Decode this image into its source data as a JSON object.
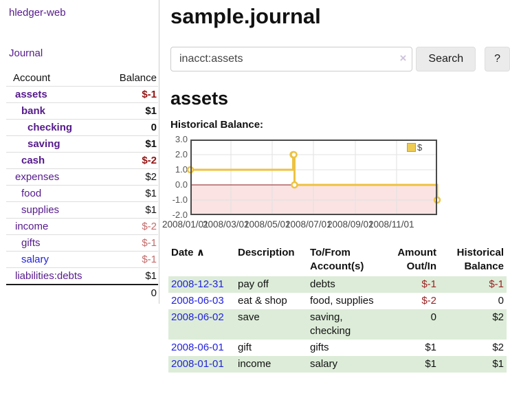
{
  "app": {
    "brand": "hledger-web"
  },
  "sidebar": {
    "journal_link": "Journal",
    "accounts": {
      "account_header": "Account",
      "balance_header": "Balance",
      "rows": [
        {
          "account": "assets",
          "depth": 1,
          "bold": true,
          "balance": "$-1"
        },
        {
          "account": "bank",
          "depth": 2,
          "bold": true,
          "balance": "$1"
        },
        {
          "account": "checking",
          "depth": 3,
          "bold": true,
          "balance": "0"
        },
        {
          "account": "saving",
          "depth": 3,
          "bold": true,
          "balance": "$1"
        },
        {
          "account": "cash",
          "depth": 2,
          "bold": true,
          "balance": "$-2"
        },
        {
          "account": "expenses",
          "depth": 1,
          "bold": false,
          "balance": "$2"
        },
        {
          "account": "food",
          "depth": 2,
          "bold": false,
          "balance": "$1"
        },
        {
          "account": "supplies",
          "depth": 2,
          "bold": false,
          "balance": "$1"
        },
        {
          "account": "income",
          "depth": 1,
          "bold": false,
          "balance": "$-2"
        },
        {
          "account": "gifts",
          "depth": 2,
          "bold": false,
          "balance": "$-1"
        },
        {
          "account": "salary",
          "depth": 2,
          "bold": false,
          "balance": "$-1",
          "unvisited": true
        },
        {
          "account": "liabilities:debts",
          "depth": 1,
          "bold": false,
          "balance": "$1"
        }
      ],
      "total": "0"
    }
  },
  "main": {
    "title": "sample.journal",
    "search": {
      "value": "inacct:assets",
      "clear_icon": "×",
      "button_label": "Search",
      "help_label": "?"
    },
    "account_heading": "assets",
    "chart_label": "Historical Balance:",
    "register": {
      "headers": {
        "date": "Date",
        "sort_icon": "∧",
        "description": "Description",
        "accounts": "To/From Account(s)",
        "amount": "Amount Out/In",
        "balance": "Historical Balance"
      },
      "rows": [
        {
          "date": "2008-12-31",
          "description": "pay off",
          "accounts": "debts",
          "amount": "$-1",
          "balance": "$-1"
        },
        {
          "date": "2008-06-03",
          "description": "eat & shop",
          "accounts": "food, supplies",
          "amount": "$-2",
          "balance": "0"
        },
        {
          "date": "2008-06-02",
          "description": "save",
          "accounts": "saving, checking",
          "amount": "0",
          "balance": "$2"
        },
        {
          "date": "2008-06-01",
          "description": "gift",
          "accounts": "gifts",
          "amount": "$1",
          "balance": "$2"
        },
        {
          "date": "2008-01-01",
          "description": "income",
          "accounts": "salary",
          "amount": "$1",
          "balance": "$1"
        }
      ]
    }
  },
  "chart_data": {
    "type": "line",
    "title": "Historical Balance:",
    "step": true,
    "series": [
      {
        "name": "$",
        "points": [
          [
            "2008-01-01",
            1
          ],
          [
            "2008-06-01",
            2
          ],
          [
            "2008-06-02",
            2
          ],
          [
            "2008-06-03",
            0
          ],
          [
            "2008-12-31",
            -1
          ]
        ]
      }
    ],
    "xlim": [
      "2008-01-01",
      "2008-12-31"
    ],
    "ylim": [
      -2,
      3
    ],
    "y_ticks": [
      "3.0",
      "2.0",
      "1.0",
      "0.0",
      "-1.0",
      "-2.0"
    ],
    "x_ticks": [
      "2008/01/01",
      "2008/03/01",
      "2008/05/01",
      "2008/07/01",
      "2008/09/01",
      "2008/11/01"
    ],
    "x_tick_dates": [
      "2008-01-01",
      "2008-03-01",
      "2008-05-01",
      "2008-07-01",
      "2008-09-01",
      "2008-11-01"
    ],
    "legend": {
      "position": "top-right",
      "label": "$"
    },
    "colors": {
      "line": "#edc240",
      "marker_fill": "#ffffff",
      "negative_region": "#fbe3e3",
      "zero_line": "#8b1a1a",
      "grid": "#e2e2e2",
      "border": "#4a4a4a"
    },
    "grid": true
  }
}
